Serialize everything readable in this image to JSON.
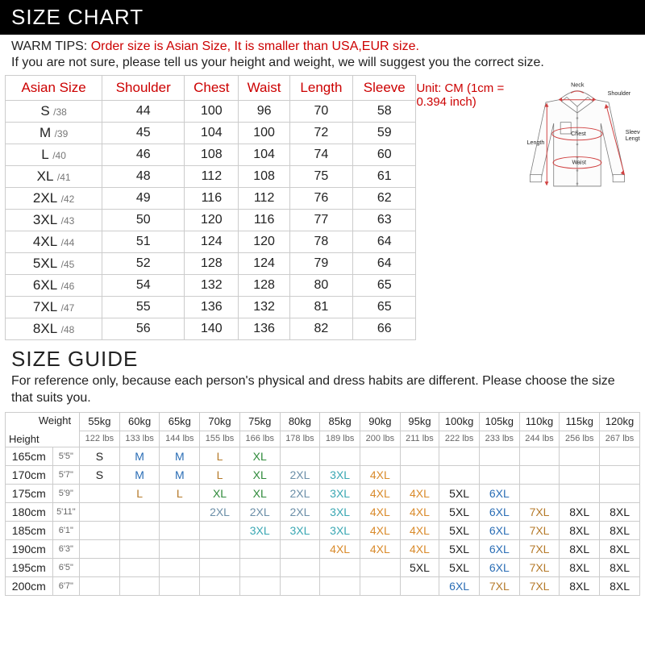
{
  "header1": "SIZE CHART",
  "warm_tips_label": "WARM TIPS:",
  "warm_tips_text": "Order size is Asian Size, It is smaller than USA,EUR size.",
  "note1": "If you are not sure, please tell us your height and weight, we will suggest you the correct size.",
  "size_chart": {
    "columns": [
      "Asian Size",
      "Shoulder",
      "Chest",
      "Waist",
      "Length",
      "Sleeve"
    ],
    "unit_label": "Unit: CM (1cm = 0.394 inch)",
    "rows": [
      {
        "size": "S",
        "sub": "/38",
        "vals": [
          44,
          100,
          96,
          70,
          58
        ]
      },
      {
        "size": "M",
        "sub": "/39",
        "vals": [
          45,
          104,
          100,
          72,
          59
        ]
      },
      {
        "size": "L",
        "sub": "/40",
        "vals": [
          46,
          108,
          104,
          74,
          60
        ]
      },
      {
        "size": "XL",
        "sub": "/41",
        "vals": [
          48,
          112,
          108,
          75,
          61
        ]
      },
      {
        "size": "2XL",
        "sub": "/42",
        "vals": [
          49,
          116,
          112,
          76,
          62
        ]
      },
      {
        "size": "3XL",
        "sub": "/43",
        "vals": [
          50,
          120,
          116,
          77,
          63
        ]
      },
      {
        "size": "4XL",
        "sub": "/44",
        "vals": [
          51,
          124,
          120,
          78,
          64
        ]
      },
      {
        "size": "5XL",
        "sub": "/45",
        "vals": [
          52,
          128,
          124,
          79,
          64
        ]
      },
      {
        "size": "6XL",
        "sub": "/46",
        "vals": [
          54,
          132,
          128,
          80,
          65
        ]
      },
      {
        "size": "7XL",
        "sub": "/47",
        "vals": [
          55,
          136,
          132,
          81,
          65
        ]
      },
      {
        "size": "8XL",
        "sub": "/48",
        "vals": [
          56,
          140,
          136,
          82,
          66
        ]
      }
    ]
  },
  "diagram_labels": [
    "Neck",
    "Shoulder",
    "Chest",
    "Sleeve Length",
    "Length",
    "Waist"
  ],
  "header2": "SIZE GUIDE",
  "guide_note": "For reference only, because each person's physical and dress habits are different. Please choose the size that suits you.",
  "guide": {
    "corner_weight": "Weight",
    "corner_height": "Height",
    "weights_kg": [
      "55kg",
      "60kg",
      "65kg",
      "70kg",
      "75kg",
      "80kg",
      "85kg",
      "90kg",
      "95kg",
      "100kg",
      "105kg",
      "110kg",
      "115kg",
      "120kg"
    ],
    "weights_lbs": [
      "122 lbs",
      "133 lbs",
      "144 lbs",
      "155 lbs",
      "166 lbs",
      "178 lbs",
      "189 lbs",
      "200 lbs",
      "211 lbs",
      "222 lbs",
      "233 lbs",
      "244 lbs",
      "256 lbs",
      "267 lbs"
    ],
    "heights": [
      {
        "cm": "165cm",
        "ft": "5'5\""
      },
      {
        "cm": "170cm",
        "ft": "5'7\""
      },
      {
        "cm": "175cm",
        "ft": "5'9\""
      },
      {
        "cm": "180cm",
        "ft": "5'11\""
      },
      {
        "cm": "185cm",
        "ft": "6'1\""
      },
      {
        "cm": "190cm",
        "ft": "6'3\""
      },
      {
        "cm": "195cm",
        "ft": "6'5\""
      },
      {
        "cm": "200cm",
        "ft": "6'7\""
      }
    ],
    "cells": [
      [
        "S",
        "M",
        "M",
        "L",
        "XL",
        "",
        "",
        "",
        "",
        "",
        "",
        "",
        "",
        ""
      ],
      [
        "S",
        "M",
        "M",
        "L",
        "XL",
        "2XL",
        "3XL",
        "4XL",
        "",
        "",
        "",
        "",
        "",
        ""
      ],
      [
        "",
        "L",
        "L",
        "XL",
        "XL",
        "2XL",
        "3XL",
        "4XL",
        "4XL",
        "5XL",
        "6XL",
        "",
        "",
        ""
      ],
      [
        "",
        "",
        "",
        "2XL",
        "2XL",
        "2XL",
        "3XL",
        "4XL",
        "4XL",
        "5XL",
        "6XL",
        "7XL",
        "8XL",
        "8XL"
      ],
      [
        "",
        "",
        "",
        "",
        "3XL",
        "3XL",
        "3XL",
        "4XL",
        "4XL",
        "5XL",
        "6XL",
        "7XL",
        "8XL",
        "8XL"
      ],
      [
        "",
        "",
        "",
        "",
        "",
        "",
        "4XL",
        "4XL",
        "4XL",
        "5XL",
        "6XL",
        "7XL",
        "8XL",
        "8XL"
      ],
      [
        "",
        "",
        "",
        "",
        "",
        "",
        "",
        "",
        "5XL",
        "5XL",
        "6XL",
        "7XL",
        "8XL",
        "8XL"
      ],
      [
        "",
        "",
        "",
        "",
        "",
        "",
        "",
        "",
        "",
        "6XL",
        "7XL",
        "7XL",
        "8XL",
        "8XL"
      ]
    ],
    "color_map": {
      "S": "#222",
      "M": "#2a6db5",
      "L": "#b57a2a",
      "XL": "#2e8a3a",
      "2XL": "#6c8fa8",
      "3XL": "#3aa7b3",
      "4XL": "#d98a2a",
      "5XL": "#222",
      "6XL": "#2a6db5",
      "7XL": "#b57a2a",
      "8XL": "#222"
    }
  },
  "colors": {
    "header_red": "#cc0000",
    "shirt_ink": "#7a7a7a",
    "measure": "#d04040"
  }
}
